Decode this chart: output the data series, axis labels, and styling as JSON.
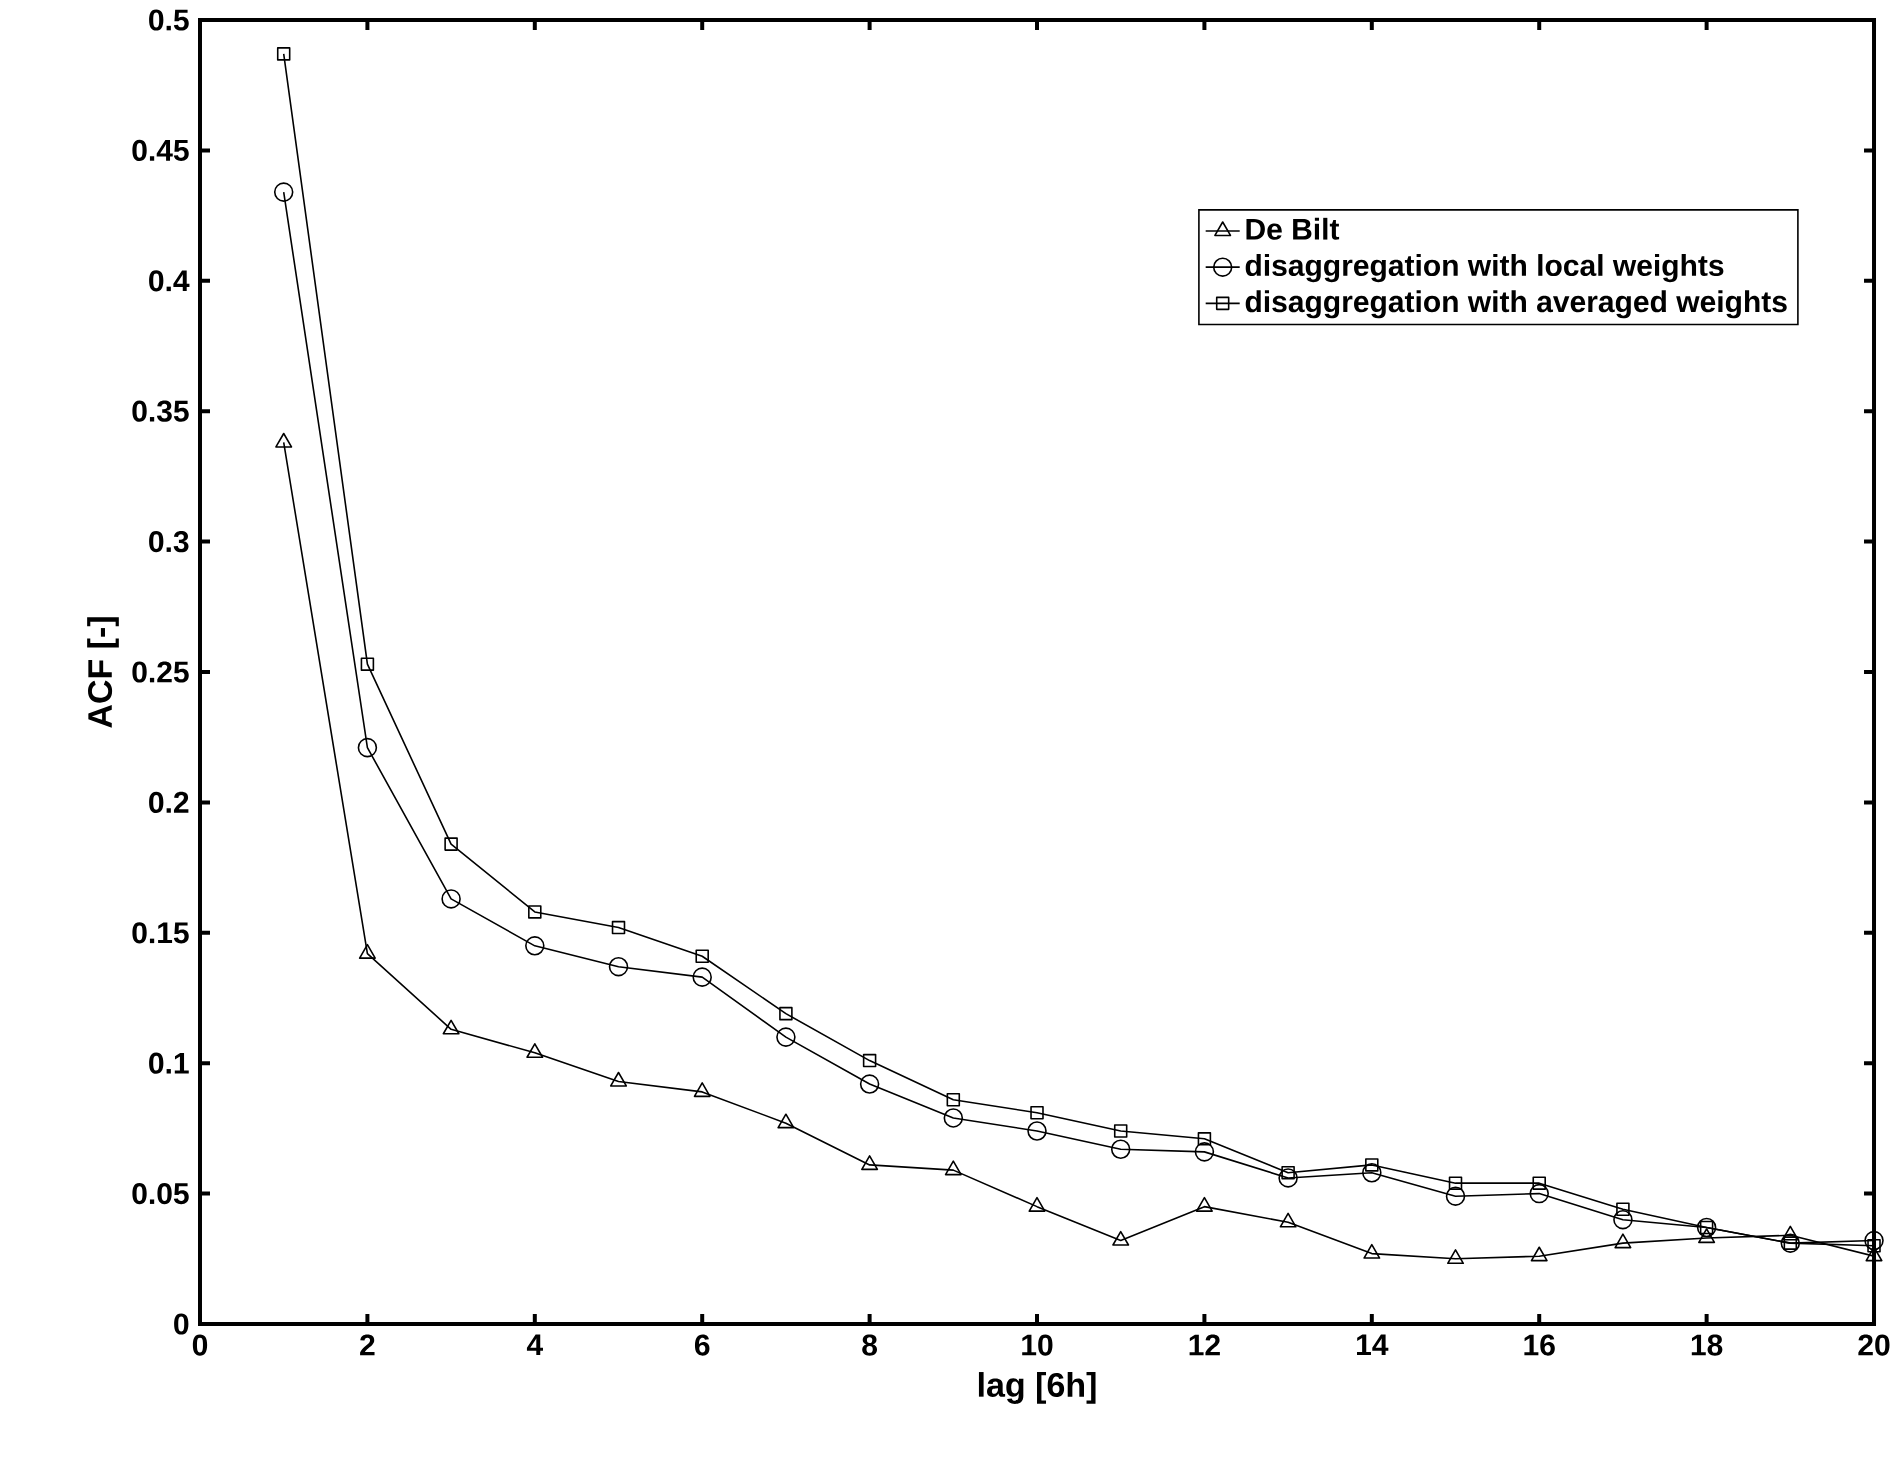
{
  "chart_data": {
    "type": "line",
    "xlabel": "lag  [6h]",
    "ylabel": "ACF [-]",
    "x": [
      1,
      2,
      3,
      4,
      5,
      6,
      7,
      8,
      9,
      10,
      11,
      12,
      13,
      14,
      15,
      16,
      17,
      18,
      19,
      20
    ],
    "series": [
      {
        "name": "De Bilt",
        "color": "#000000",
        "marker": "triangle",
        "values": [
          0.338,
          0.142,
          0.113,
          0.104,
          0.093,
          0.089,
          0.077,
          0.061,
          0.059,
          0.045,
          0.032,
          0.045,
          0.039,
          0.027,
          0.025,
          0.026,
          0.031,
          0.033,
          0.034,
          0.026
        ]
      },
      {
        "name": "disaggregation with local weights",
        "color": "#000000",
        "marker": "circle",
        "values": [
          0.434,
          0.221,
          0.163,
          0.145,
          0.137,
          0.133,
          0.11,
          0.092,
          0.079,
          0.074,
          0.067,
          0.066,
          0.056,
          0.058,
          0.049,
          0.05,
          0.04,
          0.037,
          0.031,
          0.032
        ]
      },
      {
        "name": "disaggregation with averaged weights",
        "color": "#000000",
        "marker": "square",
        "values": [
          0.487,
          0.253,
          0.184,
          0.158,
          0.152,
          0.141,
          0.119,
          0.101,
          0.086,
          0.081,
          0.074,
          0.071,
          0.058,
          0.061,
          0.054,
          0.054,
          0.044,
          0.037,
          0.031,
          0.03
        ]
      }
    ],
    "xlim": [
      0,
      20
    ],
    "xticks": [
      0,
      2,
      4,
      6,
      8,
      10,
      12,
      14,
      16,
      18,
      20
    ],
    "ylim": [
      0,
      0.5
    ],
    "yticks": [
      0,
      0.05,
      0.1,
      0.15,
      0.2,
      0.25,
      0.3,
      0.35,
      0.4,
      0.45,
      0.5
    ],
    "legend": "top right",
    "grid": false,
    "line_style": "solid"
  }
}
